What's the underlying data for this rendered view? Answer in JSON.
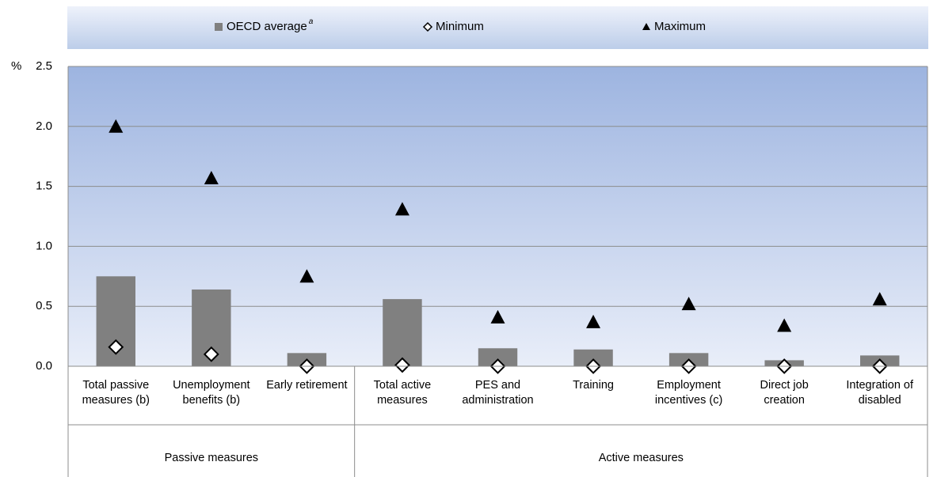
{
  "chart_data": {
    "type": "bar_marker",
    "y_unit_label": "%",
    "groups": [
      {
        "name": "Passive measures",
        "categories": [
          "Total passive measures (b)",
          "Unemployment benefits (b)",
          "Early retirement"
        ]
      },
      {
        "name": "Active measures",
        "categories": [
          "Total active measures",
          "PES and administration",
          "Training",
          "Employment incentives (c)",
          "Direct job creation",
          "Integration of disabled"
        ]
      }
    ],
    "series": [
      {
        "name": "OECD average",
        "name_note": "a",
        "kind": "bar",
        "color": "#808080",
        "values": [
          0.75,
          0.64,
          0.11,
          0.56,
          0.15,
          0.14,
          0.11,
          0.05,
          0.09
        ]
      },
      {
        "name": "Minimum",
        "kind": "diamond",
        "color": "#ffffff",
        "values": [
          0.16,
          0.1,
          0.0,
          0.01,
          0.0,
          0.0,
          0.0,
          0.0,
          0.0
        ]
      },
      {
        "name": "Maximum",
        "kind": "triangle",
        "color": "#000000",
        "values": [
          2.0,
          1.57,
          0.75,
          1.31,
          0.41,
          0.37,
          0.52,
          0.34,
          0.56
        ]
      }
    ],
    "ylim": [
      0,
      2.5
    ],
    "yticks": [
      {
        "value": 0,
        "label": "0.0"
      },
      0.5,
      {
        "value": 1,
        "label": "1.0"
      },
      1.5,
      {
        "value": 2,
        "label": "2.0"
      },
      2.5
    ],
    "grid": true
  }
}
